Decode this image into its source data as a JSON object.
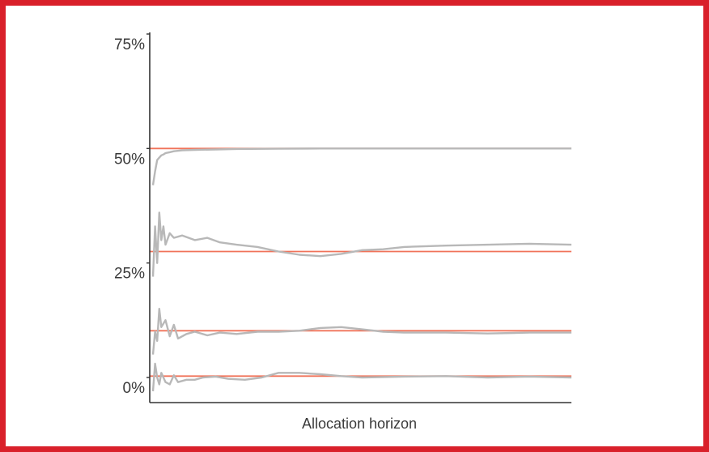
{
  "chart_data": {
    "type": "line",
    "xlabel": "Allocation horizon",
    "ylabel": "",
    "ylim": [
      0,
      75
    ],
    "yticks": [
      0,
      25,
      50,
      75
    ],
    "ytick_labels": [
      "0%",
      "25%",
      "50%",
      "75%"
    ],
    "xlim": [
      0,
      1
    ],
    "grid": false,
    "legend": "none",
    "colors": {
      "target": "#f0735a",
      "observed": "#b8b8b8",
      "axis": "#333333",
      "frame": "#d9202a"
    },
    "target_lines": [
      50,
      27.5,
      10.2,
      0.3
    ],
    "series": [
      {
        "x": [
          0,
          0.005,
          0.01,
          0.015,
          0.02,
          0.025,
          0.03,
          0.04,
          0.05,
          0.07,
          0.1,
          0.15,
          0.2,
          0.3,
          0.4,
          0.5,
          0.6,
          0.7,
          0.8,
          0.9,
          1.0
        ],
        "values": [
          42,
          45,
          47.5,
          48,
          48.5,
          48.7,
          49,
          49.2,
          49.4,
          49.6,
          49.7,
          49.8,
          49.9,
          49.95,
          50,
          50,
          50,
          50,
          50,
          50,
          50
        ]
      },
      {
        "x": [
          0,
          0.005,
          0.01,
          0.015,
          0.02,
          0.025,
          0.03,
          0.04,
          0.05,
          0.07,
          0.1,
          0.13,
          0.16,
          0.2,
          0.25,
          0.3,
          0.35,
          0.4,
          0.45,
          0.5,
          0.55,
          0.6,
          0.7,
          0.8,
          0.9,
          1.0
        ],
        "values": [
          22,
          33,
          25,
          36,
          30,
          33,
          29,
          31.5,
          30.5,
          31,
          30,
          30.5,
          29.5,
          29,
          28.5,
          27.5,
          26.8,
          26.5,
          27,
          27.8,
          28,
          28.5,
          28.8,
          29,
          29.2,
          29
        ]
      },
      {
        "x": [
          0,
          0.005,
          0.01,
          0.015,
          0.02,
          0.03,
          0.04,
          0.05,
          0.06,
          0.08,
          0.1,
          0.13,
          0.16,
          0.2,
          0.25,
          0.3,
          0.35,
          0.4,
          0.45,
          0.5,
          0.55,
          0.6,
          0.7,
          0.8,
          0.9,
          1.0
        ],
        "values": [
          5,
          10,
          8,
          15,
          11,
          12.5,
          9,
          11.5,
          8.5,
          9.5,
          10,
          9.2,
          9.8,
          9.5,
          10,
          10,
          10.2,
          10.8,
          11,
          10.5,
          10,
          9.8,
          9.8,
          9.6,
          9.8,
          9.8
        ]
      },
      {
        "x": [
          0,
          0.005,
          0.01,
          0.015,
          0.02,
          0.03,
          0.04,
          0.05,
          0.06,
          0.08,
          0.1,
          0.12,
          0.15,
          0.18,
          0.22,
          0.26,
          0.3,
          0.35,
          0.4,
          0.45,
          0.5,
          0.6,
          0.7,
          0.8,
          0.9,
          1.0
        ],
        "values": [
          -3,
          3,
          0,
          -1.5,
          1,
          -1,
          -1.5,
          0.5,
          -1,
          -0.5,
          -0.5,
          0,
          0.2,
          -0.3,
          -0.5,
          0,
          1,
          1,
          0.7,
          0.3,
          0,
          0.2,
          0.3,
          0,
          0.2,
          0
        ]
      }
    ]
  }
}
